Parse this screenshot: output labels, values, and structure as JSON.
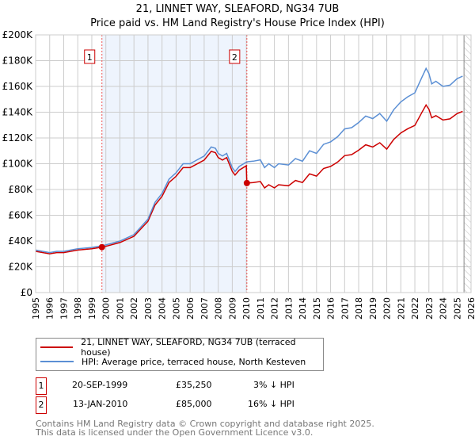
{
  "title_line1": "21, LINNET WAY, SLEAFORD, NG34 7UB",
  "title_line2": "Price paid vs. HM Land Registry's House Price Index (HPI)",
  "colors": {
    "property": "#cc0000",
    "hpi": "#5b8fd4",
    "shade": "#eef4fd"
  },
  "chart_data": {
    "type": "line",
    "xlim": [
      1995,
      2026
    ],
    "ylim": [
      0,
      200000
    ],
    "x_ticks": [
      "1995",
      "1996",
      "1997",
      "1998",
      "1999",
      "2000",
      "2001",
      "2002",
      "2003",
      "2004",
      "2005",
      "2006",
      "2007",
      "2008",
      "2009",
      "2010",
      "2011",
      "2012",
      "2013",
      "2014",
      "2015",
      "2016",
      "2017",
      "2018",
      "2019",
      "2020",
      "2021",
      "2022",
      "2023",
      "2024",
      "2025",
      "2026"
    ],
    "y_ticks": [
      {
        "v": 0,
        "label": "£0"
      },
      {
        "v": 20000,
        "label": "£20K"
      },
      {
        "v": 40000,
        "label": "£40K"
      },
      {
        "v": 60000,
        "label": "£60K"
      },
      {
        "v": 80000,
        "label": "£80K"
      },
      {
        "v": 100000,
        "label": "£100K"
      },
      {
        "v": 120000,
        "label": "£120K"
      },
      {
        "v": 140000,
        "label": "£140K"
      },
      {
        "v": 160000,
        "label": "£160K"
      },
      {
        "v": 180000,
        "label": "£180K"
      },
      {
        "v": 200000,
        "label": "£200K"
      }
    ],
    "series": [
      {
        "name": "HPI: Average price, terraced house, North Kesteven",
        "color": "#5b8fd4",
        "x": [
          1995,
          1996,
          1996.5,
          1997,
          1998,
          1999,
          1999.72,
          2000,
          2001,
          2002,
          2003,
          2003.5,
          2004,
          2004.5,
          2005,
          2005.5,
          2006,
          2006.5,
          2007,
          2007.5,
          2007.8,
          2008,
          2008.3,
          2008.6,
          2009,
          2009.2,
          2009.5,
          2010.04,
          2010.5,
          2011,
          2011.3,
          2011.6,
          2012,
          2012.3,
          2013,
          2013.5,
          2014,
          2014.5,
          2015,
          2015.5,
          2016,
          2016.5,
          2017,
          2017.5,
          2018,
          2018.5,
          2019,
          2019.5,
          2020,
          2020.5,
          2021,
          2021.5,
          2022,
          2022.5,
          2022.8,
          2023,
          2023.2,
          2023.5,
          2024,
          2024.5,
          2025,
          2025.4
        ],
        "y": [
          33,
          31,
          32,
          32,
          34,
          35,
          36.3,
          37,
          40,
          45,
          57,
          70,
          77,
          88,
          93,
          100,
          100,
          103,
          106,
          113,
          112,
          108,
          106,
          108,
          97,
          94,
          98,
          101.5,
          102,
          103,
          97,
          100,
          97,
          100,
          99,
          104,
          102,
          110,
          108,
          115,
          117,
          121,
          127,
          128,
          132,
          137,
          135,
          139,
          133,
          142,
          148,
          152,
          155,
          167,
          174,
          170,
          162,
          164,
          160,
          161,
          166,
          168
        ]
      },
      {
        "name": "21, LINNET WAY, SLEAFORD, NG34 7UB (terraced house)",
        "color": "#cc0000",
        "x": [
          1995,
          1996,
          1996.5,
          1997,
          1998,
          1999,
          1999.72,
          2000,
          2001,
          2002,
          2003,
          2003.5,
          2004,
          2004.5,
          2005,
          2005.5,
          2006,
          2006.5,
          2007,
          2007.5,
          2007.8,
          2008,
          2008.3,
          2008.6,
          2009,
          2009.2,
          2009.5,
          2010.0,
          2010.04,
          2010.5,
          2011,
          2011.3,
          2011.6,
          2012,
          2012.3,
          2013,
          2013.5,
          2014,
          2014.5,
          2015,
          2015.5,
          2016,
          2016.5,
          2017,
          2017.5,
          2018,
          2018.5,
          2019,
          2019.5,
          2020,
          2020.5,
          2021,
          2021.5,
          2022,
          2022.5,
          2022.8,
          2023,
          2023.2,
          2023.5,
          2024,
          2024.5,
          2025,
          2025.4
        ],
        "y": [
          32,
          30.1,
          31,
          31,
          33,
          34,
          35.25,
          35.9,
          38.8,
          43.7,
          55.3,
          67.9,
          74.7,
          85.4,
          90.2,
          97,
          97,
          99.9,
          102.8,
          109.6,
          108.6,
          104.8,
          102.8,
          104.8,
          94.1,
          91.2,
          95.1,
          98.4,
          85,
          85.4,
          86.2,
          81.2,
          83.7,
          81.2,
          83.7,
          82.9,
          87,
          85.4,
          92.1,
          90.4,
          96.3,
          97.9,
          101.3,
          106.3,
          107.1,
          110.5,
          114.7,
          113,
          116.3,
          111.3,
          118.9,
          123.9,
          127.2,
          129.7,
          139.8,
          145.6,
          142.3,
          135.6,
          137.3,
          133.9,
          134.8,
          138.9,
          140.6
        ]
      }
    ],
    "y_unit": "thousands GBP",
    "sales": [
      {
        "label": "1",
        "x": 1999.72,
        "y": 35.25
      },
      {
        "label": "2",
        "x": 2010.04,
        "y": 85
      }
    ],
    "shaded_range": [
      1999.72,
      2010.04
    ],
    "forecast_hatch_from": 2025.5
  },
  "legend": {
    "property": "21, LINNET WAY, SLEAFORD, NG34 7UB (terraced house)",
    "hpi": "HPI: Average price, terraced house, North Kesteven"
  },
  "sales_table": [
    {
      "num": "1",
      "date": "20-SEP-1999",
      "price": "£35,250",
      "hpi": "3% ↓ HPI"
    },
    {
      "num": "2",
      "date": "13-JAN-2010",
      "price": "£85,000",
      "hpi": "16% ↓ HPI"
    }
  ],
  "footer_line1": "Contains HM Land Registry data © Crown copyright and database right 2025.",
  "footer_line2": "This data is licensed under the Open Government Licence v3.0."
}
